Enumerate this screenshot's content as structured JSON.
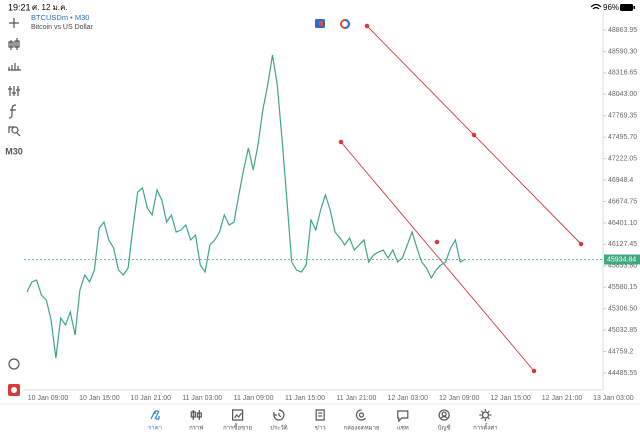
{
  "status_bar": {
    "time": "19:21",
    "date": "ศ. 12 ม.ค.",
    "battery": "96%"
  },
  "chart_data": {
    "type": "line",
    "title": "BTCUSDm • M30",
    "subtitle": "Bitcoin vs US Dollar",
    "timeframe": "M30",
    "color": "#3fa77d",
    "values": [
      45520,
      45647,
      45673,
      45482,
      45418,
      45162,
      44677,
      45188,
      45099,
      45265,
      44971,
      45545,
      45737,
      45647,
      45801,
      46337,
      46413,
      46184,
      46081,
      45801,
      45737,
      45826,
      46337,
      46796,
      46847,
      46592,
      46503,
      46822,
      46694,
      46413,
      46503,
      46286,
      46311,
      46375,
      46184,
      46247,
      45864,
      45775,
      46120,
      46184,
      46286,
      46503,
      46375,
      46413,
      46758,
      47077,
      47358,
      47077,
      47396,
      47843,
      48162,
      48545,
      48162,
      47460,
      46694,
      45903,
      45801,
      45775,
      45864,
      46439,
      46311,
      46566,
      46758,
      46566,
      46286,
      46209,
      46120,
      46209,
      46056,
      46120,
      46184,
      45903,
      45992,
      46030,
      46056,
      45954,
      46056,
      45903,
      45954,
      46120,
      46286,
      46081,
      45903,
      45826,
      45699,
      45801,
      45864,
      45903,
      46081,
      46184,
      45903,
      45935
    ],
    "current_price": 45934.84,
    "ylim": [
      44269,
      49017
    ],
    "yticks": [
      48863.95,
      {
        "value": 48590.3,
        "label": "48590.30"
      },
      48316.65,
      {
        "value": 48043,
        "label": "48043.00"
      },
      47769.35,
      {
        "value": 47495.7,
        "label": "47495.70"
      },
      47222.05,
      46948.4,
      46674.75,
      {
        "value": 46401.1,
        "label": "46401.10"
      },
      46127.45,
      {
        "value": 45853.8,
        "label": "45853.80"
      },
      45580.15,
      {
        "value": 45306.5,
        "label": "45306.50"
      },
      45032.85,
      44759.2,
      44485.55
    ],
    "xtick_labels": [
      "10 Jan 09:00",
      "10 Jan 15:00",
      "10 Jan 21:00",
      "11 Jan 03:00",
      "11 Jan 09:00",
      "11 Jan 15:00",
      "11 Jan 21:00",
      "12 Jan 03:00",
      "12 Jan 09:00",
      "12 Jan 15:00",
      "12 Jan 21:00",
      "13 Jan 03:00"
    ]
  },
  "nav": {
    "active": 0,
    "items": [
      "ราคา",
      "กราฟ",
      "การซื้อขาย",
      "ประวัติ",
      "ข่าว",
      "กล่องจดหมาย",
      "แชท",
      "บัญชี",
      "การตั้งค่า"
    ]
  }
}
